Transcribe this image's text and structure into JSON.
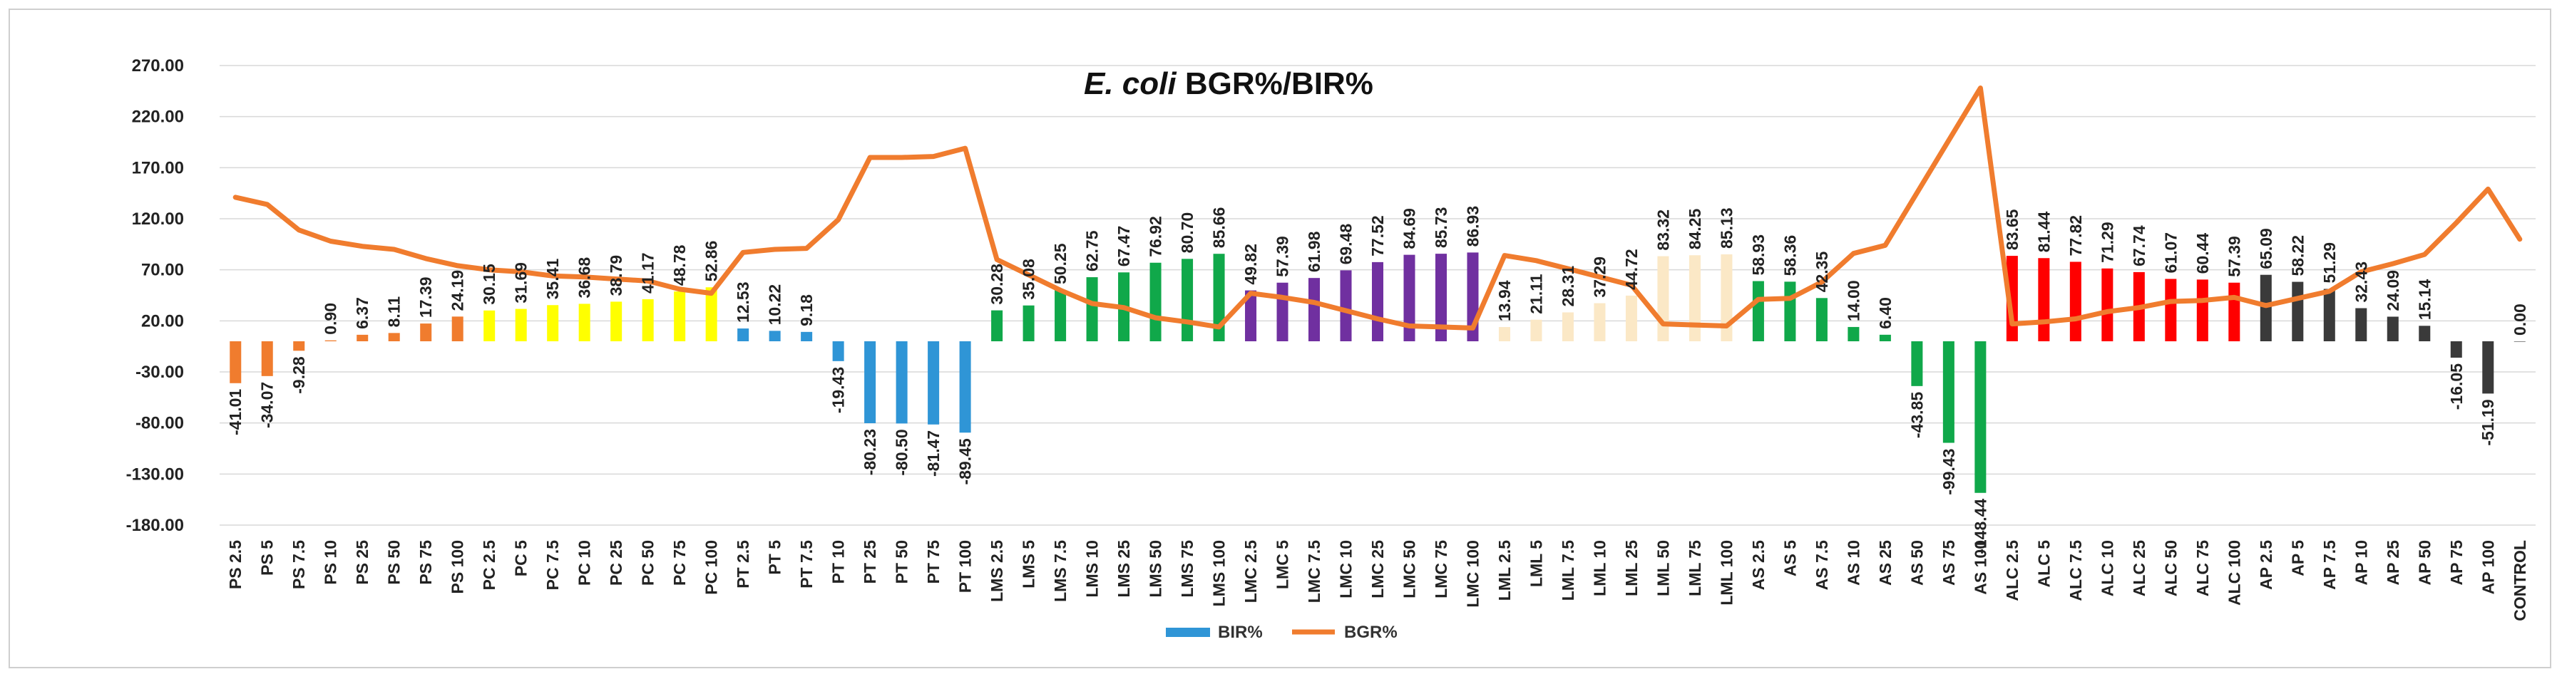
{
  "chart_data": {
    "type": "bar",
    "title_italic": "E. coli",
    "title_rest": " BGR%/BIR%",
    "ylim": [
      -180,
      270
    ],
    "yticks": [
      "270.00",
      "220.00",
      "170.00",
      "120.00",
      "70.00",
      "20.00",
      "-30.00",
      "-80.00",
      "-130.00",
      "-180.00"
    ],
    "ytick_values": [
      270,
      220,
      170,
      120,
      70,
      20,
      -30,
      -80,
      -130,
      -180
    ],
    "grid": true,
    "legend_position": "bottom",
    "categories": [
      "PS 2.5",
      "PS 5",
      "PS 7.5",
      "PS 10",
      "PS 25",
      "PS 50",
      "PS 75",
      "PS 100",
      "PC 2.5",
      "PC 5",
      "PC 7.5",
      "PC 10",
      "PC 25",
      "PC 50",
      "PC 75",
      "PC 100",
      "PT 2.5",
      "PT 5",
      "PT 7.5",
      "PT 10",
      "PT 25",
      "PT 50",
      "PT 75",
      "PT 100",
      "LMS 2.5",
      "LMS 5",
      "LMS 7.5",
      "LMS 10",
      "LMS 25",
      "LMS 50",
      "LMS 75",
      "LMS 100",
      "LMC 2.5",
      "LMC 5",
      "LMC 7.5",
      "LMC 10",
      "LMC 25",
      "LMC 50",
      "LMC 75",
      "LMC 100",
      "LML 2.5",
      "LML 5",
      "LML 7.5",
      "LML 10",
      "LML 25",
      "LML 50",
      "LML 75",
      "LML 100",
      "AS 2.5",
      "AS 5",
      "AS 7.5",
      "AS 10",
      "AS 25",
      "AS 50",
      "AS 75",
      "AS 100",
      "ALC 2.5",
      "ALC 5",
      "ALC 7.5",
      "ALC 10",
      "ALC 25",
      "ALC 50",
      "ALC 75",
      "ALC 100",
      "AP 2.5",
      "AP 5",
      "AP 7.5",
      "AP 10",
      "AP 25",
      "AP 50",
      "AP 75",
      "AP 100",
      "CONTROL"
    ],
    "series": [
      {
        "name": "BIR%",
        "kind": "bar",
        "values": [
          -41.01,
          -34.07,
          -9.28,
          0.9,
          6.37,
          8.11,
          17.39,
          24.19,
          30.15,
          31.69,
          35.41,
          36.68,
          38.79,
          41.17,
          48.78,
          52.86,
          12.53,
          10.22,
          9.18,
          -19.43,
          -80.23,
          -80.5,
          -81.47,
          -89.45,
          30.28,
          35.08,
          50.25,
          62.75,
          67.47,
          76.92,
          80.7,
          85.66,
          49.82,
          57.39,
          61.98,
          69.48,
          77.52,
          84.69,
          85.73,
          86.93,
          13.94,
          21.11,
          28.31,
          37.29,
          44.72,
          83.32,
          84.25,
          85.13,
          58.93,
          58.36,
          42.35,
          14.0,
          6.4,
          -43.85,
          -99.43,
          -148.44,
          83.65,
          81.44,
          77.82,
          71.29,
          67.74,
          61.07,
          60.44,
          57.39,
          65.09,
          58.22,
          51.29,
          32.43,
          24.09,
          15.14,
          -16.05,
          -51.19,
          0.0
        ],
        "labels": [
          "-41.01",
          "-34.07",
          "-9.28",
          "0.90",
          "6.37",
          "8.11",
          "17.39",
          "24.19",
          "30.15",
          "31.69",
          "35.41",
          "36.68",
          "38.79",
          "41.17",
          "48.78",
          "52.86",
          "12.53",
          "10.22",
          "9.18",
          "-19.43",
          "-80.23",
          "-80.50",
          "-81.47",
          "-89.45",
          "30.28",
          "35.08",
          "50.25",
          "62.75",
          "67.47",
          "76.92",
          "80.70",
          "85.66",
          "49.82",
          "57.39",
          "61.98",
          "69.48",
          "77.52",
          "84.69",
          "85.73",
          "86.93",
          "13.94",
          "21.11",
          "28.31",
          "37.29",
          "44.72",
          "83.32",
          "84.25",
          "85.13",
          "58.93",
          "58.36",
          "42.35",
          "14.00",
          "6.40",
          "-43.85",
          "-99.43",
          "-148.44",
          "83.65",
          "81.44",
          "77.82",
          "71.29",
          "67.74",
          "61.07",
          "60.44",
          "57.39",
          "65.09",
          "58.22",
          "51.29",
          "32.43",
          "24.09",
          "15.14",
          "-16.05",
          "-51.19",
          "0.00"
        ],
        "group_colors": {
          "PS": "#F07C2E",
          "PC": "#FFFF00",
          "PT": "#2F95D6",
          "LMS": "#10A84A",
          "LMC": "#7030A0",
          "LML": "#FBE8C6",
          "AS": "#10A84A",
          "ALC": "#FF0000",
          "AP": "#3A3A3A",
          "CONTROL": "#888888"
        }
      },
      {
        "name": "BGR%",
        "kind": "line",
        "color": "#F07C2E",
        "values": [
          141,
          134,
          109,
          98,
          93,
          90,
          81,
          74,
          70,
          68,
          64,
          63,
          61,
          59,
          51,
          47,
          87,
          90,
          91,
          119,
          180,
          180,
          181,
          189,
          80,
          65,
          50,
          37,
          33,
          23,
          19,
          14,
          47,
          43,
          38,
          30,
          22,
          15,
          14,
          13,
          84,
          79,
          71,
          63,
          55,
          17,
          16,
          15,
          41,
          42,
          58,
          86,
          94,
          null,
          null,
          248,
          17,
          19,
          22,
          29,
          33,
          39,
          40,
          43,
          35,
          42,
          49,
          68,
          76,
          85,
          116,
          149,
          100
        ]
      }
    ]
  }
}
